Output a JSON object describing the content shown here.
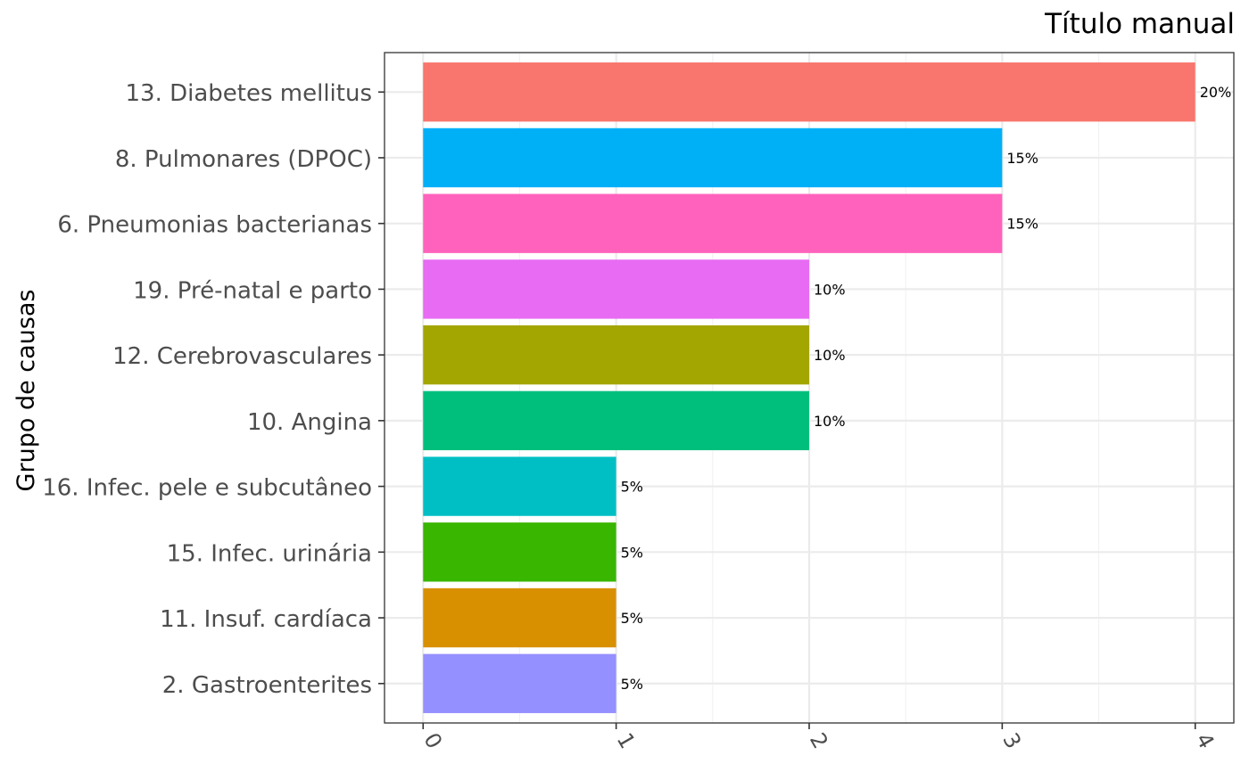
{
  "chart_data": {
    "type": "bar",
    "orientation": "horizontal",
    "title": "Título manual",
    "ylabel": "Grupo de causas",
    "xlabel": "",
    "categories": [
      "13. Diabetes mellitus",
      "8. Pulmonares (DPOC)",
      "6. Pneumonias bacterianas",
      "19. Pré-natal e parto",
      "12. Cerebrovasculares",
      "10. Angina",
      "16. Infec. pele e subcutâneo",
      "15. Infec. urinária",
      "11. Insuf. cardíaca",
      "2. Gastroenterites"
    ],
    "values": [
      4,
      3,
      3,
      2,
      2,
      2,
      1,
      1,
      1,
      1
    ],
    "labels": [
      "20%",
      "15%",
      "15%",
      "10%",
      "10%",
      "10%",
      "5%",
      "5%",
      "5%",
      "5%"
    ],
    "colors": [
      "#F8766D",
      "#00B0F6",
      "#FF62BC",
      "#E76BF3",
      "#A3A500",
      "#00BF7D",
      "#00BFC4",
      "#39B600",
      "#D89000",
      "#9590FF"
    ],
    "xticks": [
      "0",
      "1",
      "2",
      "3",
      "4"
    ],
    "xlim": [
      -0.2,
      4.2
    ],
    "xtick_rotation": 60,
    "grid": true,
    "legend": "none",
    "theme": {
      "background": "#FFFFFF",
      "panel_border": "#333333",
      "grid_major": "#EBEBEB",
      "grid_minor": "#F2F2F2"
    }
  }
}
